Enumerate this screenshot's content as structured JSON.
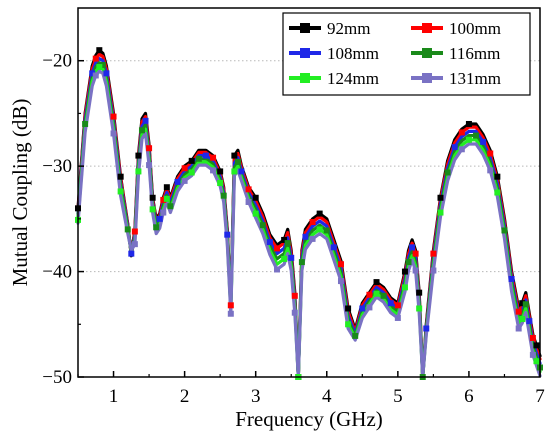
{
  "chart_data": {
    "type": "line",
    "xlabel": "Frequency (GHz)",
    "ylabel": "Mutual Coupling (dB)",
    "xlim": [
      0.5,
      7
    ],
    "ylim": [
      -50,
      -15
    ],
    "x_ticks": [
      1,
      2,
      3,
      4,
      5,
      6,
      7
    ],
    "y_ticks": [
      -20,
      -30,
      -40,
      -50
    ],
    "grid": "horizontal dotted at y ticks",
    "legend_placement": "top-right",
    "legend_columns": 2,
    "x": [
      0.5,
      0.6,
      0.7,
      0.75,
      0.8,
      0.85,
      0.9,
      1.0,
      1.1,
      1.2,
      1.25,
      1.3,
      1.35,
      1.4,
      1.45,
      1.5,
      1.55,
      1.6,
      1.65,
      1.7,
      1.75,
      1.8,
      1.9,
      2.0,
      2.1,
      2.2,
      2.3,
      2.4,
      2.5,
      2.55,
      2.6,
      2.65,
      2.7,
      2.75,
      2.8,
      2.9,
      3.0,
      3.1,
      3.2,
      3.3,
      3.4,
      3.45,
      3.5,
      3.55,
      3.6,
      3.65,
      3.7,
      3.8,
      3.9,
      4.0,
      4.1,
      4.2,
      4.3,
      4.4,
      4.5,
      4.6,
      4.7,
      4.8,
      4.9,
      5.0,
      5.1,
      5.15,
      5.2,
      5.25,
      5.3,
      5.35,
      5.4,
      5.5,
      5.6,
      5.7,
      5.8,
      5.9,
      6.0,
      6.1,
      6.2,
      6.3,
      6.4,
      6.5,
      6.6,
      6.7,
      6.75,
      6.8,
      6.85,
      6.9,
      6.95,
      7.0
    ],
    "series": [
      {
        "name": "92mm",
        "color": "#000000",
        "values": [
          -34,
          -25,
          -20.5,
          -19.5,
          -19,
          -19.3,
          -20.5,
          -25,
          -31,
          -35.5,
          -38.5,
          -36,
          -29,
          -25.5,
          -25,
          -28,
          -33,
          -35,
          -34.5,
          -33,
          -32,
          -33,
          -31,
          -30,
          -29.5,
          -28.5,
          -28.5,
          -29,
          -30.5,
          -32,
          -36,
          -43,
          -29,
          -28.5,
          -30,
          -32,
          -33,
          -34.5,
          -36.5,
          -37.5,
          -37,
          -36,
          -38,
          -42,
          -50,
          -38,
          -36,
          -35,
          -34.5,
          -35,
          -37,
          -39,
          -43.5,
          -45.5,
          -43,
          -42,
          -41,
          -41.5,
          -42.5,
          -43,
          -40,
          -38,
          -37,
          -38,
          -42,
          -50,
          -45,
          -38,
          -33,
          -29.5,
          -27.5,
          -26.5,
          -26,
          -26,
          -27,
          -28.5,
          -31,
          -35,
          -40,
          -43.5,
          -43,
          -42,
          -44,
          -46,
          -47,
          -48
        ]
      },
      {
        "name": "100mm",
        "color": "#ff0000",
        "values": [
          -34.2,
          -25.2,
          -20.8,
          -19.8,
          -19.4,
          -19.6,
          -20.8,
          -25.3,
          -31.2,
          -35.6,
          -38.4,
          -36.2,
          -29.3,
          -25.8,
          -25.3,
          -28.3,
          -33.2,
          -35.2,
          -34.7,
          -33.2,
          -32.2,
          -33.2,
          -31.2,
          -30.2,
          -29.7,
          -28.7,
          -28.7,
          -29.2,
          -30.7,
          -32.2,
          -36.2,
          -43.2,
          -29.3,
          -28.8,
          -30.2,
          -32.2,
          -33.3,
          -34.8,
          -36.8,
          -37.8,
          -37.3,
          -36.3,
          -38.3,
          -42.3,
          -50,
          -38.3,
          -36.3,
          -35.3,
          -34.8,
          -35.3,
          -37.3,
          -39.3,
          -43.8,
          -45.7,
          -43.2,
          -42.2,
          -41.2,
          -41.7,
          -42.7,
          -43.2,
          -40.3,
          -38.3,
          -37.3,
          -38.3,
          -42.3,
          -50,
          -45.2,
          -38.3,
          -33.2,
          -29.8,
          -27.8,
          -26.8,
          -26.3,
          -26.3,
          -27.3,
          -28.8,
          -31.3,
          -35.3,
          -40.3,
          -43.8,
          -43.3,
          -42.3,
          -44.3,
          -46.3,
          -47.3,
          -48.3
        ]
      },
      {
        "name": "108mm",
        "color": "#1f28e8",
        "values": [
          -34.5,
          -25.6,
          -21.2,
          -20.2,
          -19.8,
          -20,
          -21.2,
          -25.7,
          -31.6,
          -35.8,
          -38.3,
          -36.5,
          -29.7,
          -26.2,
          -25.7,
          -28.7,
          -33.5,
          -35.5,
          -35,
          -33.5,
          -32.5,
          -33.5,
          -31.5,
          -30.5,
          -30,
          -29,
          -29,
          -29.5,
          -31,
          -32.5,
          -36.5,
          -43.4,
          -29.7,
          -29.2,
          -30.5,
          -32.5,
          -33.7,
          -35.2,
          -37.2,
          -38.3,
          -37.8,
          -36.8,
          -38.7,
          -42.7,
          -50,
          -38.7,
          -36.7,
          -35.7,
          -35.2,
          -35.7,
          -37.7,
          -39.7,
          -44.2,
          -45.9,
          -43.5,
          -42.5,
          -41.5,
          -42,
          -43,
          -43.5,
          -40.7,
          -38.7,
          -37.7,
          -38.7,
          -42.7,
          -50,
          -45.4,
          -38.7,
          -33.6,
          -30.2,
          -28.2,
          -27.2,
          -26.7,
          -26.7,
          -27.7,
          -29.2,
          -31.7,
          -35.7,
          -40.7,
          -44.2,
          -43.7,
          -42.7,
          -44.7,
          -46.7,
          -47.7,
          -48.7
        ]
      },
      {
        "name": "116mm",
        "color": "#1a8a1a",
        "values": [
          -34.8,
          -26,
          -21.6,
          -20.6,
          -20.2,
          -20.4,
          -21.6,
          -26.1,
          -32,
          -36,
          -38.2,
          -36.8,
          -30.1,
          -26.6,
          -26.1,
          -29.1,
          -33.8,
          -35.8,
          -35.3,
          -33.8,
          -32.8,
          -33.8,
          -31.8,
          -30.8,
          -30.3,
          -29.3,
          -29.3,
          -29.8,
          -31.3,
          -32.8,
          -36.8,
          -43.6,
          -30.1,
          -29.6,
          -30.8,
          -32.8,
          -34.1,
          -35.6,
          -37.6,
          -38.8,
          -38.3,
          -37.3,
          -39.1,
          -43.1,
          -50,
          -39.1,
          -37.1,
          -36.1,
          -35.6,
          -36.1,
          -38.1,
          -40.1,
          -44.6,
          -46.1,
          -43.8,
          -42.8,
          -41.8,
          -42.3,
          -43.3,
          -43.8,
          -41.1,
          -39.1,
          -38.1,
          -39.1,
          -43.1,
          -50,
          -45.6,
          -39.1,
          -34,
          -30.6,
          -28.6,
          -27.6,
          -27.1,
          -27.1,
          -28.1,
          -29.6,
          -32.1,
          -36.1,
          -41.1,
          -44.6,
          -44.1,
          -43.1,
          -45.1,
          -47.1,
          -48.1,
          -49.1
        ]
      },
      {
        "name": "124mm",
        "color": "#22ee22",
        "values": [
          -35.1,
          -26.4,
          -22,
          -21,
          -20.6,
          -20.8,
          -22,
          -26.5,
          -32.4,
          -36.2,
          -38.1,
          -37.1,
          -30.5,
          -27,
          -26.5,
          -29.5,
          -34.1,
          -36.1,
          -35.6,
          -34.1,
          -33.1,
          -34.1,
          -32.1,
          -31.1,
          -30.6,
          -29.6,
          -29.6,
          -30.1,
          -31.6,
          -33.1,
          -37.1,
          -43.8,
          -30.5,
          -30,
          -31.1,
          -33.1,
          -34.5,
          -36,
          -38,
          -39.3,
          -38.8,
          -37.8,
          -39.5,
          -43.5,
          -50,
          -39.5,
          -37.5,
          -36.5,
          -36,
          -36.5,
          -38.5,
          -40.5,
          -45,
          -46.3,
          -44.1,
          -43.1,
          -42.1,
          -42.6,
          -43.6,
          -44.1,
          -41.5,
          -39.5,
          -38.5,
          -39.5,
          -43.5,
          -50,
          -45.8,
          -39.5,
          -34.4,
          -31,
          -29,
          -28,
          -27.5,
          -27.5,
          -28.5,
          -30,
          -32.5,
          -36.5,
          -41.5,
          -45,
          -44.5,
          -43.5,
          -45.5,
          -47.5,
          -48.5,
          -49.5
        ]
      },
      {
        "name": "131mm",
        "color": "#7a72c4",
        "values": [
          -35.4,
          -26.8,
          -22.4,
          -21.4,
          -21,
          -21.2,
          -22.4,
          -26.9,
          -32.8,
          -36.4,
          -38,
          -37.4,
          -30.9,
          -27.4,
          -26.9,
          -29.9,
          -34.4,
          -36.4,
          -35.9,
          -34.4,
          -33.4,
          -34.4,
          -32.4,
          -31.4,
          -30.9,
          -29.9,
          -29.9,
          -30.4,
          -31.9,
          -33.4,
          -37.4,
          -44,
          -30.9,
          -30.4,
          -31.4,
          -33.4,
          -34.9,
          -36.4,
          -38.4,
          -39.8,
          -39.3,
          -38.3,
          -39.9,
          -43.9,
          -50,
          -39.9,
          -37.9,
          -36.9,
          -36.4,
          -36.9,
          -38.9,
          -40.9,
          -45.4,
          -46.5,
          -44.4,
          -43.4,
          -42.4,
          -42.9,
          -43.9,
          -44.4,
          -41.9,
          -39.9,
          -38.9,
          -39.9,
          -43.9,
          -50,
          -46,
          -39.9,
          -34.8,
          -31.4,
          -29.4,
          -28.4,
          -27.9,
          -27.9,
          -28.9,
          -30.4,
          -32.9,
          -36.9,
          -41.9,
          -45.4,
          -44.9,
          -43.9,
          -45.9,
          -47.9,
          -48.9,
          -49.9
        ]
      }
    ]
  }
}
